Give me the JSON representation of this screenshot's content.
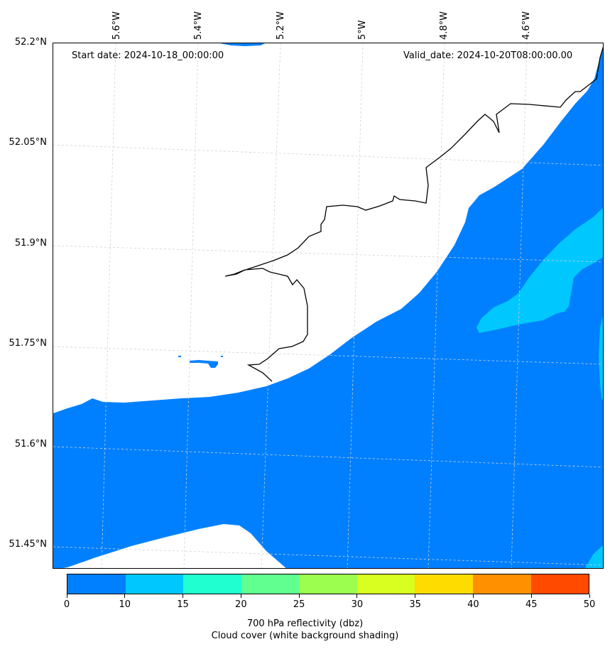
{
  "map": {
    "start_date": "Start date: 2024-10-18_00:00:00",
    "valid_date": "Valid_date: 2024-10-20T08:00:00.00",
    "lat_labels": [
      "52.2°N",
      "52.05°N",
      "51.9°N",
      "51.75°N",
      "51.6°N",
      "51.45°N"
    ],
    "lon_labels": [
      "5.6°W",
      "5.4°W",
      "5.2°W",
      "5°W",
      "4.8°W",
      "4.6°W"
    ],
    "background_meaning": "white",
    "fill_colors": {
      "band_0_10": "#0080ff",
      "band_10_15": "#00c8ff"
    },
    "coastline_color": "#000000",
    "gridline_color": "#d0d0d0"
  },
  "colorbar": {
    "ticks": [
      "0",
      "10",
      "15",
      "20",
      "25",
      "30",
      "35",
      "40",
      "45",
      "50"
    ],
    "colors": [
      "#0080ff",
      "#00c8ff",
      "#20ffd0",
      "#60ff90",
      "#9cff50",
      "#d8ff20",
      "#ffdc00",
      "#ff9000",
      "#ff4a00"
    ],
    "label_line1": "700 hPa reflectivity (dbz)",
    "label_line2": "Cloud cover (white background shading)"
  }
}
